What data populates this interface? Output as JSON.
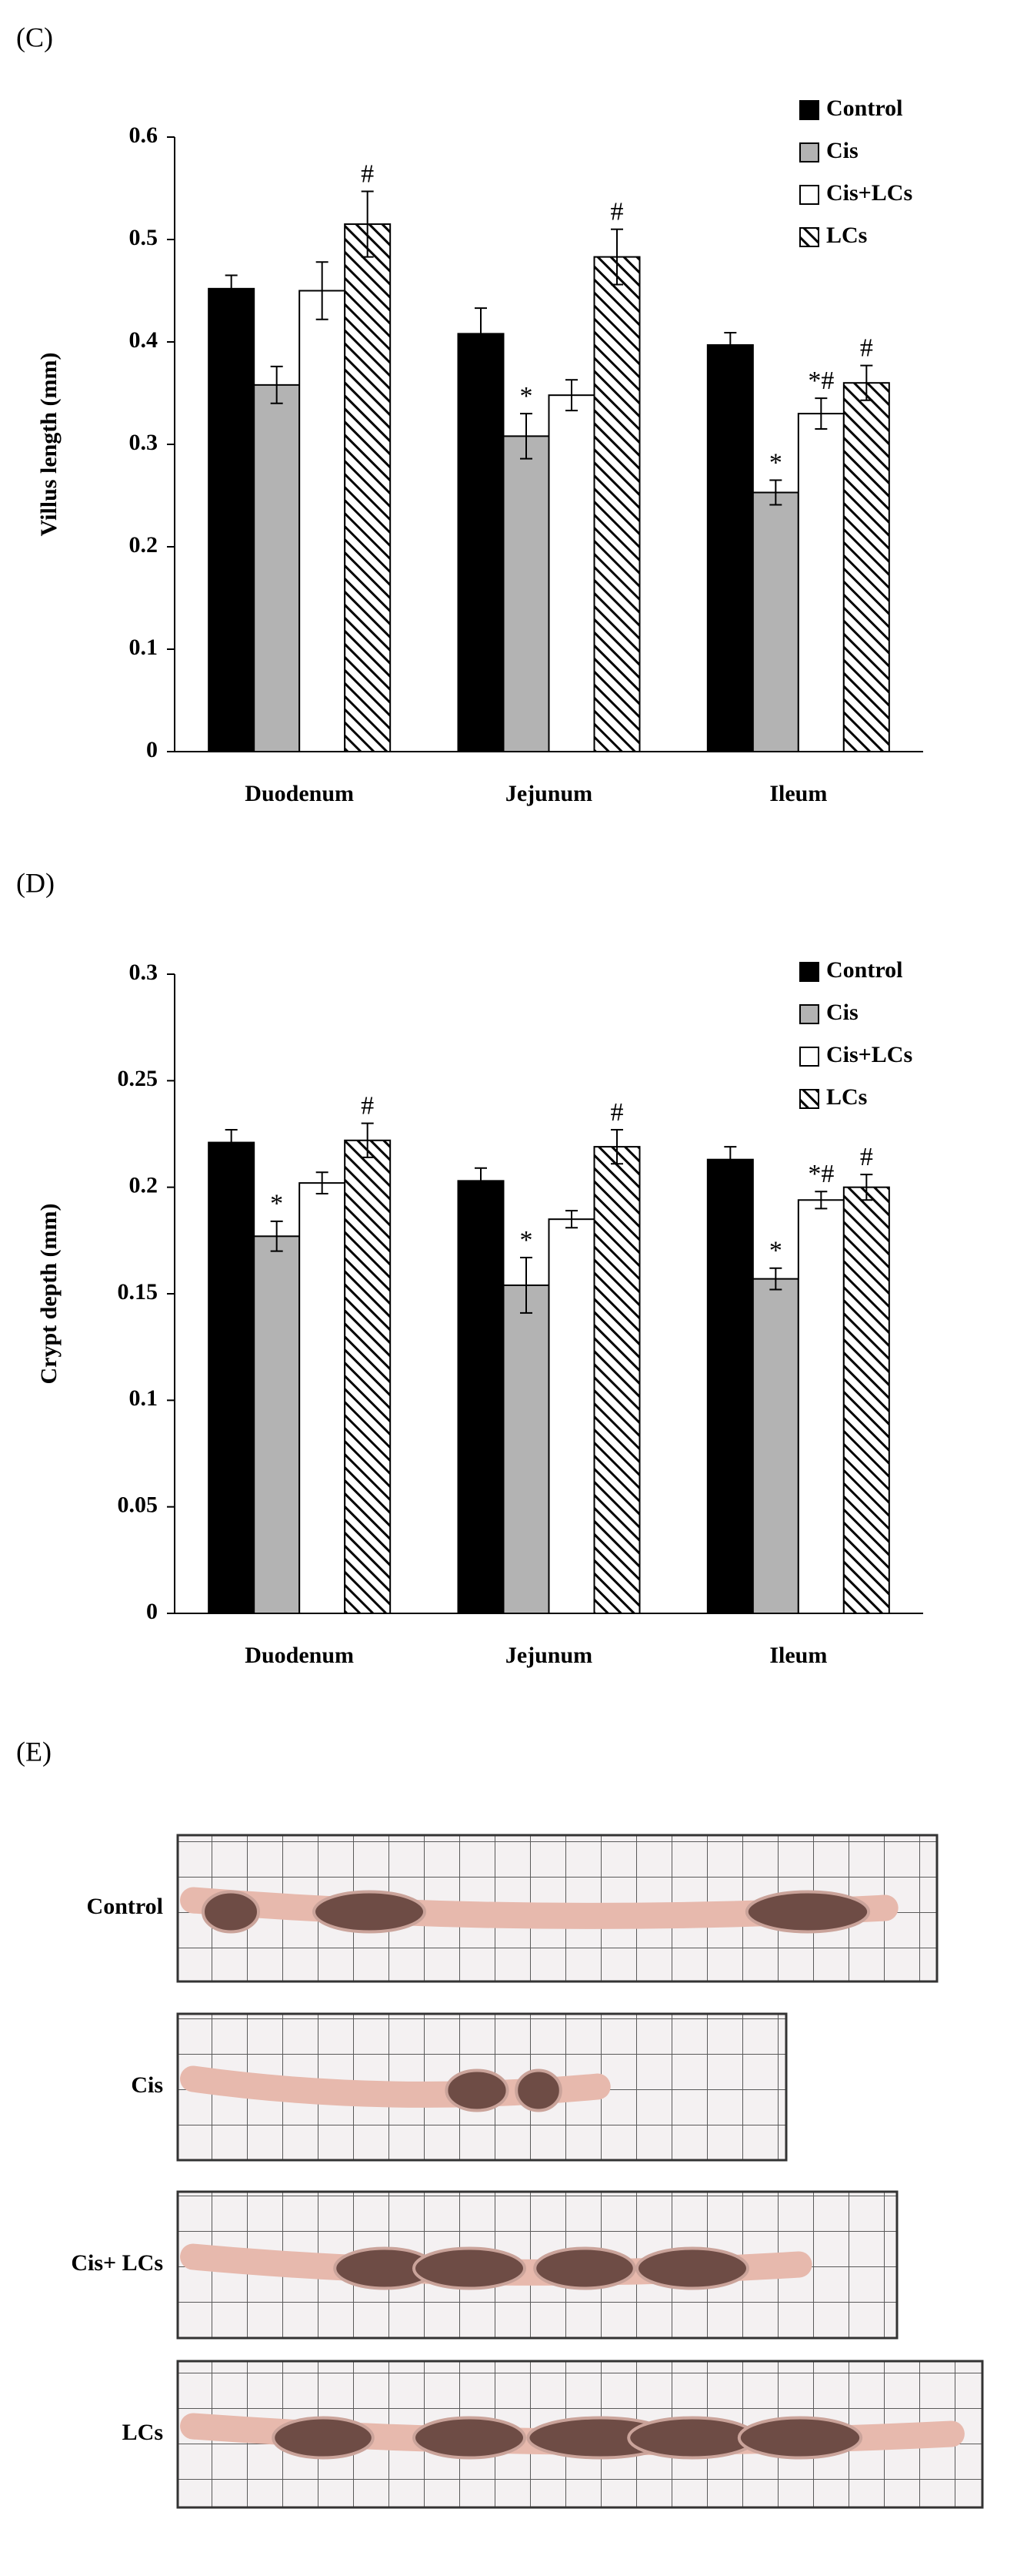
{
  "chart_data": [
    {
      "type": "bar",
      "panel_label": "(C)",
      "ylabel": "Villus length (mm)",
      "categories": [
        "Duodenum",
        "Jejunum",
        "Ileum"
      ],
      "ylim": [
        0,
        0.6
      ],
      "yticks": [
        0,
        0.1,
        0.2,
        0.3,
        0.4,
        0.5,
        0.6
      ],
      "series": [
        {
          "name": "Control",
          "color": "#000000",
          "values": [
            0.452,
            0.408,
            0.397
          ],
          "errors": [
            0.013,
            0.025,
            0.012
          ],
          "annotations": [
            null,
            null,
            null
          ]
        },
        {
          "name": "Cis",
          "color": "#b3b3b3",
          "values": [
            0.358,
            0.308,
            0.253
          ],
          "errors": [
            0.018,
            0.022,
            0.012
          ],
          "annotations": [
            null,
            "*",
            "*"
          ]
        },
        {
          "name": "Cis+LCs",
          "color": "#ffffff",
          "values": [
            0.45,
            0.348,
            0.33
          ],
          "errors": [
            0.028,
            0.015,
            0.015
          ],
          "annotations": [
            null,
            null,
            "*#"
          ]
        },
        {
          "name": "LCs",
          "color": "#ffffff",
          "hatch": true,
          "values": [
            0.515,
            0.483,
            0.36
          ],
          "errors": [
            0.032,
            0.027,
            0.017
          ],
          "annotations": [
            "#",
            "#",
            "#"
          ]
        }
      ]
    },
    {
      "type": "bar",
      "panel_label": "(D)",
      "ylabel": "Crypt depth (mm)",
      "categories": [
        "Duodenum",
        "Jejunum",
        "Ileum"
      ],
      "ylim": [
        0,
        0.3
      ],
      "yticks": [
        0,
        0.05,
        0.1,
        0.15,
        0.2,
        0.25,
        0.3
      ],
      "series": [
        {
          "name": "Control",
          "color": "#000000",
          "values": [
            0.221,
            0.203,
            0.213
          ],
          "errors": [
            0.006,
            0.006,
            0.006
          ],
          "annotations": [
            null,
            null,
            null
          ]
        },
        {
          "name": "Cis",
          "color": "#b3b3b3",
          "values": [
            0.177,
            0.154,
            0.157
          ],
          "errors": [
            0.007,
            0.013,
            0.005
          ],
          "annotations": [
            "*",
            "*",
            "*"
          ]
        },
        {
          "name": "Cis+LCs",
          "color": "#ffffff",
          "values": [
            0.202,
            0.185,
            0.194
          ],
          "errors": [
            0.005,
            0.004,
            0.004
          ],
          "annotations": [
            null,
            null,
            "*#"
          ]
        },
        {
          "name": "LCs",
          "color": "#ffffff",
          "hatch": true,
          "values": [
            0.222,
            0.219,
            0.2
          ],
          "errors": [
            0.008,
            0.008,
            0.006
          ],
          "annotations": [
            "#",
            "#",
            "#"
          ]
        }
      ]
    }
  ],
  "photo_panel": {
    "label": "(E)",
    "rows": [
      "Control",
      "Cis",
      "Cis+ LCs",
      "LCs"
    ]
  }
}
